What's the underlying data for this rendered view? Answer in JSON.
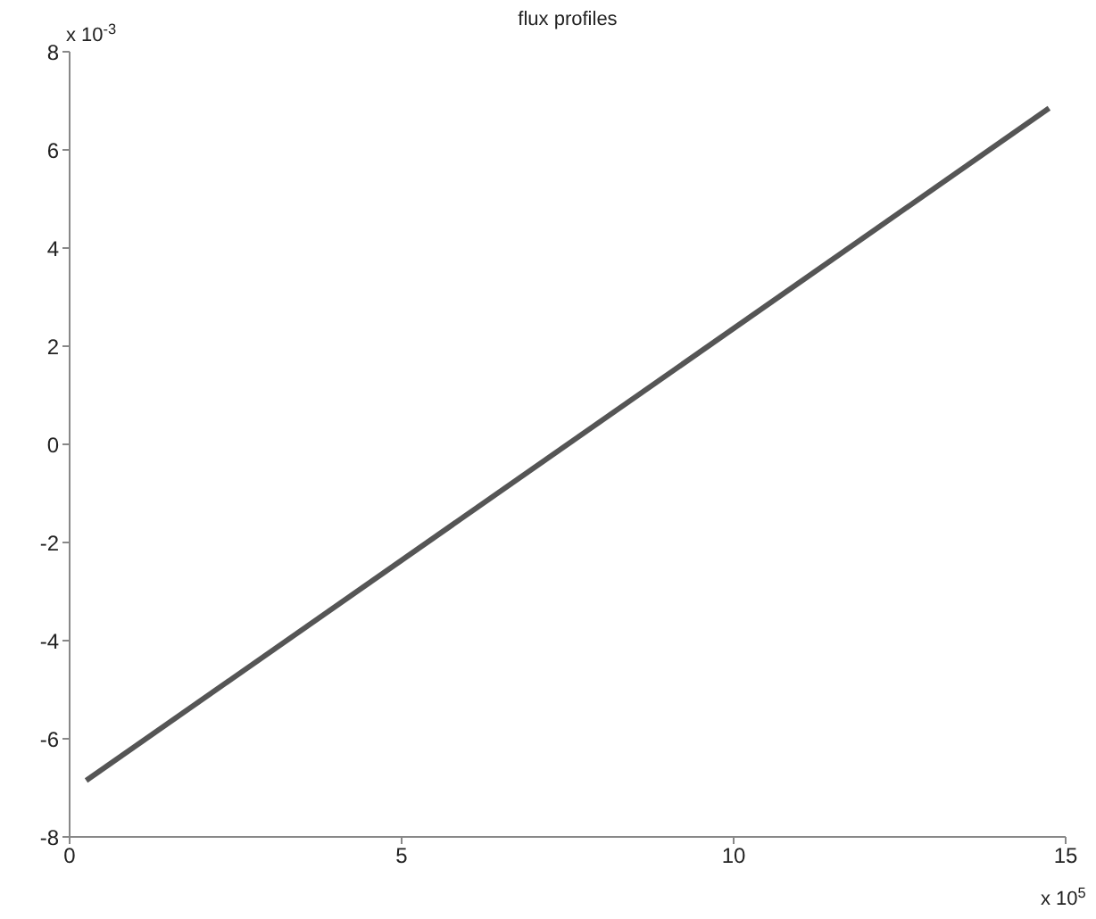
{
  "chart_data": {
    "type": "line",
    "title": "flux profiles",
    "x": [
      0.25,
      14.75
    ],
    "series": [
      {
        "color": "#555555",
        "values": [
          -6.85,
          6.85
        ]
      }
    ],
    "xlim": [
      0,
      15
    ],
    "xticks": [
      0,
      5,
      10,
      15
    ],
    "ylim": [
      -8,
      8
    ],
    "yticks": [
      -8,
      -6,
      -4,
      -2,
      0,
      2,
      4,
      6,
      8
    ],
    "annotations": [
      "x 10$^{-3}$",
      "x 10$^{5}$"
    ],
    "grid": false,
    "legend": false,
    "marker": "none",
    "line_style": "solid"
  }
}
